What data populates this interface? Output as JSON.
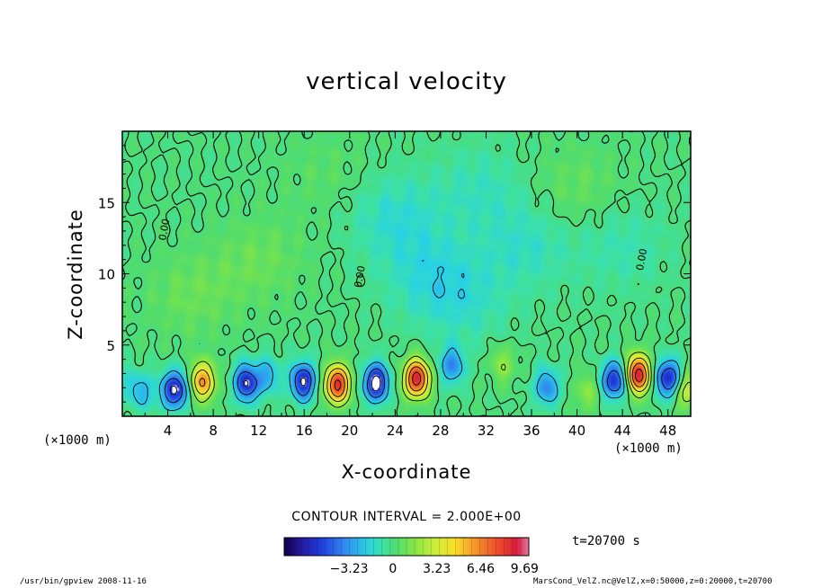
{
  "chart_data": {
    "type": "heatmap",
    "title": "vertical velocity",
    "xlabel": "X-coordinate",
    "ylabel": "Z-coordinate",
    "x_unit": "(×1000 m)",
    "xlim": [
      0,
      50
    ],
    "ylim": [
      0,
      20
    ],
    "x_ticks": [
      4,
      8,
      12,
      16,
      20,
      24,
      28,
      32,
      36,
      40,
      44,
      48
    ],
    "y_ticks": [
      5,
      10,
      15
    ],
    "contour_interval": "CONTOUR INTERVAL = 2.000E+00",
    "contour_labels": [
      "0.00",
      "0.00",
      "0.00"
    ],
    "colorbar": {
      "range": [
        -8,
        10
      ],
      "ticks": [
        "−3.23",
        "0",
        "3.23",
        "6.46",
        "9.69"
      ],
      "tick_values": [
        -3.23,
        0,
        3.23,
        6.46,
        9.69
      ]
    },
    "cells": [
      {
        "x": 0.6,
        "z": 2.0,
        "w": -1.6
      },
      {
        "x": 2.0,
        "z": 1.6,
        "w": -2.0
      },
      {
        "x": 4.6,
        "z": 1.8,
        "w": -6.5
      },
      {
        "x": 7.0,
        "z": 2.4,
        "w": 6.0
      },
      {
        "x": 10.9,
        "z": 2.3,
        "w": -6.0
      },
      {
        "x": 12.8,
        "z": 2.8,
        "w": -2.5
      },
      {
        "x": 15.9,
        "z": 2.4,
        "w": -6.2
      },
      {
        "x": 18.9,
        "z": 2.2,
        "w": 8.5
      },
      {
        "x": 22.3,
        "z": 2.3,
        "w": -6.8
      },
      {
        "x": 25.9,
        "z": 2.6,
        "w": 9.0
      },
      {
        "x": 29.0,
        "z": 3.5,
        "w": -3.5
      },
      {
        "x": 33.5,
        "z": 3.6,
        "w": 1.8
      },
      {
        "x": 37.4,
        "z": 2.0,
        "w": -3.6
      },
      {
        "x": 40.9,
        "z": 1.6,
        "w": 1.6
      },
      {
        "x": 43.4,
        "z": 2.5,
        "w": -6.0
      },
      {
        "x": 45.4,
        "z": 2.9,
        "w": 9.0
      },
      {
        "x": 48.1,
        "z": 2.6,
        "w": -6.3
      },
      {
        "x": 49.6,
        "z": 1.8,
        "w": 3.2
      },
      {
        "x": 24.0,
        "z": 14.0,
        "w": -1.4
      },
      {
        "x": 27.0,
        "z": 10.0,
        "w": -1.3
      },
      {
        "x": 35.5,
        "z": 12.0,
        "w": -1.2
      },
      {
        "x": 31.5,
        "z": 16.0,
        "w": -1.0
      },
      {
        "x": 30.0,
        "z": 8.0,
        "w": -1.1
      },
      {
        "x": 44.0,
        "z": 12.0,
        "w": -0.9
      },
      {
        "x": 12.0,
        "z": 11.0,
        "w": 0.9
      },
      {
        "x": 6.0,
        "z": 8.5,
        "w": 0.9
      },
      {
        "x": 18.0,
        "z": 17.0,
        "w": 0.5
      },
      {
        "x": 40.0,
        "z": 16.0,
        "w": 0.8
      }
    ]
  },
  "time": "t=20700 s",
  "footer": {
    "left": "/usr/bin/gpview   2008-11-16",
    "right": "MarsCond_VelZ.nc@VelZ,x=0:50000,z=0:20000,t=20700"
  }
}
